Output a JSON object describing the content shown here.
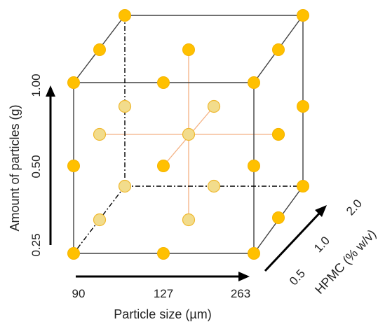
{
  "colors": {
    "point_fill": "#FFC000",
    "point_stroke": "#F5B400",
    "inner_point_fill": "#F2DC8C",
    "inner_point_stroke": "#EFB82E",
    "inner_line": "#F4B183",
    "edge": "#404040",
    "hidden_edge": "#000000",
    "arrow": "#000000"
  },
  "x_axis": {
    "title": "Particle size (µm)",
    "ticks": [
      "90",
      "127",
      "263"
    ]
  },
  "y_axis": {
    "title": "Amount of particles (g)",
    "ticks": [
      "0.25",
      "0.50",
      "1.00"
    ]
  },
  "z_axis": {
    "title": "HPMC (% w/v)",
    "ticks": [
      "0.5",
      "1.0",
      "2.0"
    ]
  },
  "design_points": {
    "corners_and_edge_midpoints_shown": 19,
    "inner_points_shown": 9
  }
}
